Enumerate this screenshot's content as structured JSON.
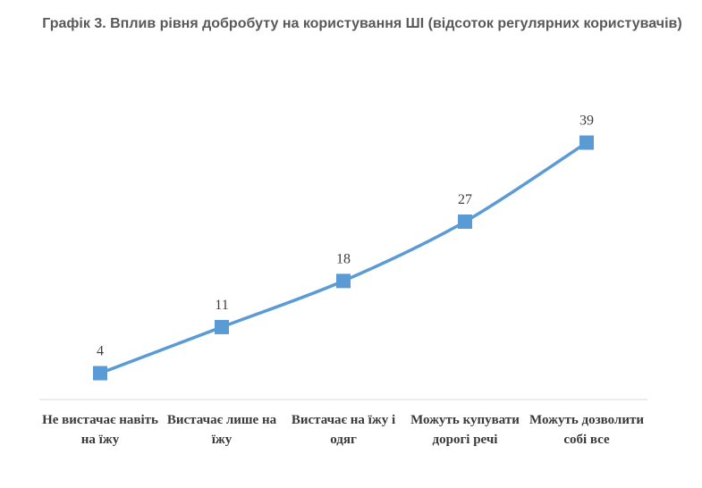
{
  "chart_data": {
    "type": "line",
    "title": "Графік 3. Вплив рівня добробуту на користування ШІ (відсоток регулярних користувачів)",
    "categories": [
      "Не вистачає навіть на їжу",
      "Вистачає лише на їжу",
      "Вистачає на їжу і одяг",
      "Можуть купувати дорогі речі",
      "Можуть дозволити собі все"
    ],
    "series": [
      {
        "values": [
          4,
          11,
          18,
          27,
          39
        ]
      }
    ],
    "data_labels": [
      "4",
      "11",
      "18",
      "27",
      "39"
    ],
    "xlabel": "",
    "ylabel": "",
    "ylim": [
      0,
      50
    ],
    "grid": false,
    "legend": "none",
    "colors": {
      "line": "#5b9bd5",
      "marker": "#5b9bd5",
      "axis": "#d9d9d9"
    }
  }
}
